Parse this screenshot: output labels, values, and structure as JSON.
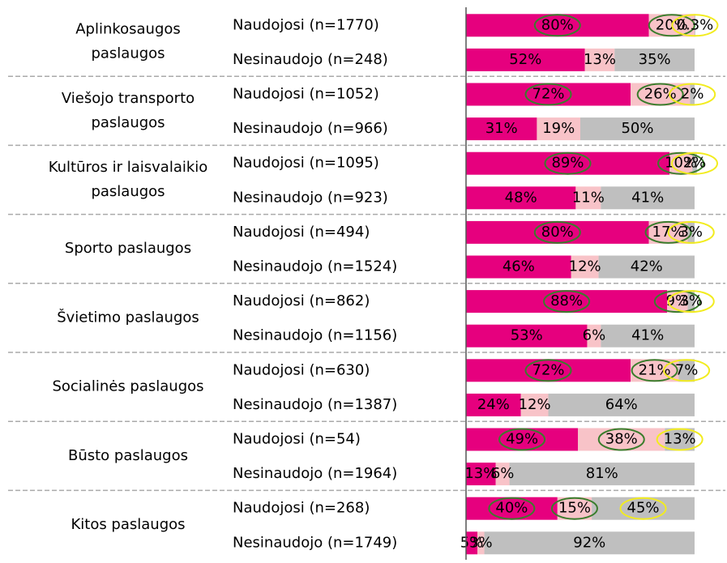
{
  "chart_data": {
    "type": "stacked_bar_horizontal",
    "groups": [
      {
        "lines": [
          "Aplinkosaugos",
          "paslaugos"
        ]
      },
      {
        "lines": [
          "Viešojo transporto",
          "paslaugos"
        ]
      },
      {
        "lines": [
          "Kultūros ir laisvalaikio",
          "paslaugos"
        ]
      },
      {
        "lines": [
          "Sporto paslaugos"
        ]
      },
      {
        "lines": [
          "Švietimo paslaugos"
        ]
      },
      {
        "lines": [
          "Socialinės paslaugos"
        ]
      },
      {
        "lines": [
          "Būsto paslaugos"
        ]
      },
      {
        "lines": [
          "Kitos paslaugos"
        ]
      }
    ],
    "categories": [
      "Naudojosi (n=1770)",
      "Nesinaudojo (n=248)",
      "Naudojosi (n=1052)",
      "Nesinaudojo (n=966)",
      "Naudojosi (n=1095)",
      "Nesinaudojo (n=923)",
      "Naudojosi (n=494)",
      "Nesinaudojo (n=1524)",
      "Naudojosi (n=862)",
      "Nesinaudojo (n=1156)",
      "Naudojosi (n=630)",
      "Nesinaudojo (n=1387)",
      "Naudojosi (n=54)",
      "Nesinaudojo (n=1964)",
      "Naudojosi (n=268)",
      "Nesinaudojo (n=1749)"
    ],
    "circled": [
      true,
      false,
      true,
      false,
      true,
      false,
      true,
      false,
      true,
      false,
      true,
      false,
      true,
      false,
      true,
      false
    ],
    "series": [
      {
        "color": "#e6007e",
        "circle_color": "#3a7d2c",
        "values": [
          80,
          52,
          72,
          31,
          89,
          48,
          80,
          46,
          88,
          53,
          72,
          24,
          49,
          13,
          40,
          5
        ],
        "value_labels": [
          "80%",
          "52%",
          "72%",
          "31%",
          "89%",
          "48%",
          "80%",
          "46%",
          "88%",
          "53%",
          "72%",
          "24%",
          "49%",
          "13%",
          "40%",
          "5%"
        ]
      },
      {
        "color": "#f8c3c8",
        "circle_color": "#3a7d2c",
        "values": [
          20,
          13,
          26,
          19,
          10,
          11,
          17,
          12,
          9,
          6,
          21,
          12,
          38,
          6,
          15,
          3
        ],
        "value_labels": [
          "20%",
          "13%",
          "26%",
          "19%",
          "10%",
          "11%",
          "17%",
          "12%",
          "9%",
          "6%",
          "21%",
          "12%",
          "38%",
          "6%",
          "15%",
          "3%"
        ]
      },
      {
        "color": "#bfbfbf",
        "circle_color": "#f2ec1f",
        "values": [
          0.3,
          35,
          2,
          50,
          2,
          41,
          3,
          42,
          3,
          41,
          7,
          64,
          13,
          81,
          45,
          92
        ],
        "value_labels": [
          "0.3%",
          "35%",
          "2%",
          "50%",
          "2%",
          "41%",
          "3%",
          "42%",
          "3%",
          "41%",
          "7%",
          "64%",
          "13%",
          "81%",
          "45%",
          "92%"
        ]
      }
    ],
    "xlim": [
      0,
      100
    ]
  }
}
